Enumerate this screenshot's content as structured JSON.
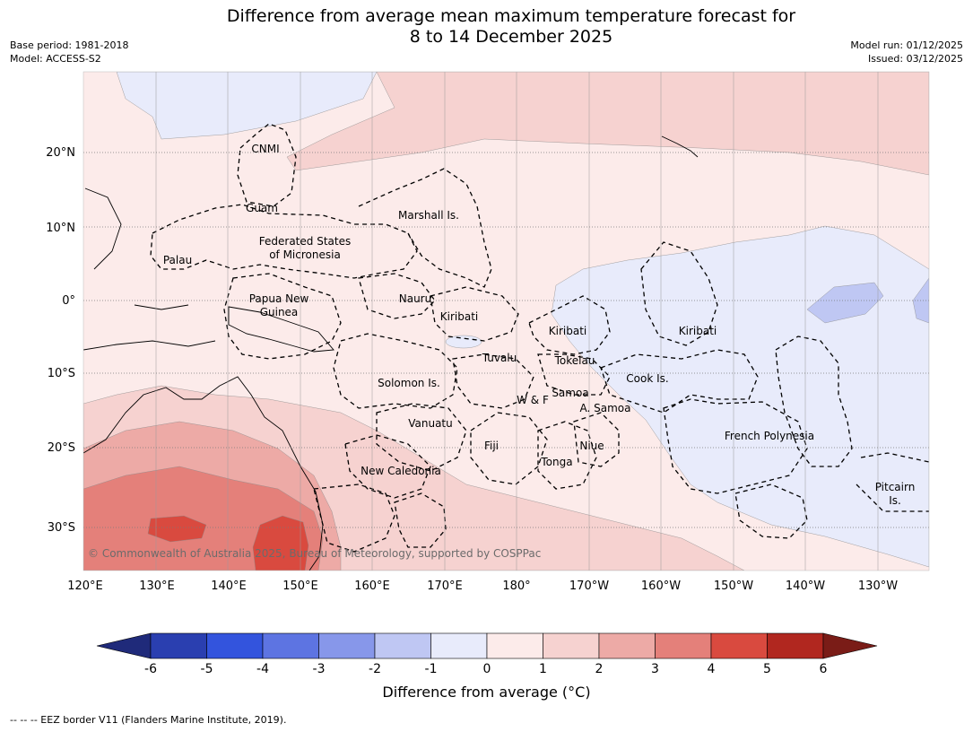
{
  "title": {
    "line1": "Difference from average mean maximum temperature forecast for",
    "line2": "8 to 14 December 2025"
  },
  "meta_left": {
    "base_period": "Base period: 1981-2018",
    "model": "Model: ACCESS-S2"
  },
  "meta_right": {
    "model_run": "Model run: 01/12/2025",
    "issued": "Issued: 03/12/2025"
  },
  "map": {
    "lon_ticks": [
      "120°E",
      "130°E",
      "140°E",
      "150°E",
      "160°E",
      "170°E",
      "180°",
      "170°W",
      "160°W",
      "150°W",
      "140°W",
      "130°W"
    ],
    "lat_ticks": [
      "20°N",
      "10°N",
      "0°",
      "10°S",
      "20°S",
      "30°S"
    ],
    "region_labels": [
      {
        "name": "CNMI"
      },
      {
        "name": "Guam"
      },
      {
        "name": "Marshall Is."
      },
      {
        "name": "Federated States"
      },
      {
        "name": "of Micronesia"
      },
      {
        "name": "Palau"
      },
      {
        "name": "Papua New"
      },
      {
        "name": "Guinea"
      },
      {
        "name": "Nauru"
      },
      {
        "name": "Kiribati"
      },
      {
        "name": "Kiribati"
      },
      {
        "name": "Kiribati"
      },
      {
        "name": "Tuvalu"
      },
      {
        "name": "Tokelau"
      },
      {
        "name": "Cook Is."
      },
      {
        "name": "Solomon Is."
      },
      {
        "name": "Samoa"
      },
      {
        "name": "W & F"
      },
      {
        "name": "A. Samoa"
      },
      {
        "name": "Vanuatu"
      },
      {
        "name": "Fiji"
      },
      {
        "name": "Niue"
      },
      {
        "name": "Tonga"
      },
      {
        "name": "French Polynesia"
      },
      {
        "name": "New Caledonia"
      },
      {
        "name": "Pitcairn"
      },
      {
        "name": "Is."
      }
    ],
    "copyright": "© Commonwealth of Australia 2025, Bureau of Meteorology, supported by COSPPac"
  },
  "colorbar": {
    "ticks": [
      "-6",
      "-5",
      "-4",
      "-3",
      "-2",
      "-1",
      "0",
      "1",
      "2",
      "3",
      "4",
      "5",
      "6"
    ],
    "colors": [
      "#1f2a7a",
      "#2a3fb0",
      "#3354dd",
      "#5d74e2",
      "#8797ea",
      "#bfc7f3",
      "#e8ebfb",
      "#fcebea",
      "#f6d2d0",
      "#edaaa6",
      "#e4807a",
      "#d94a3f",
      "#b1271f",
      "#7a1c17"
    ],
    "label": "Difference from average (°C)"
  },
  "footer": "-- -- -- EEZ border V11 (Flanders Marine Institute, 2019)."
}
